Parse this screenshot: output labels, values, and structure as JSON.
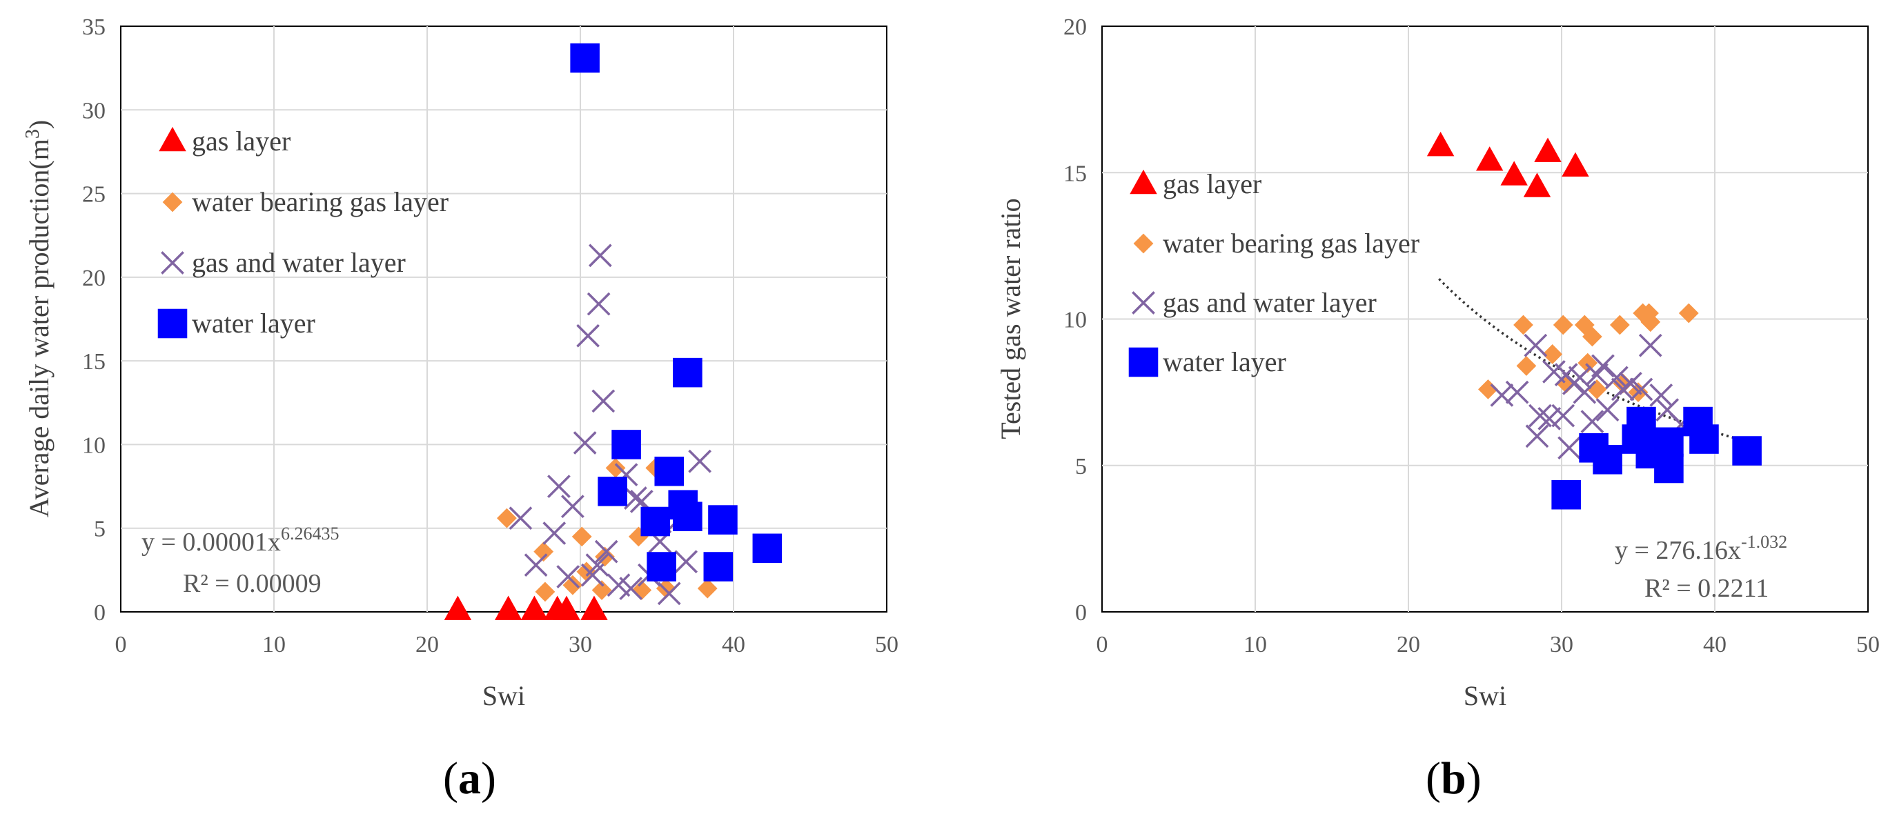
{
  "chart_data": [
    {
      "type": "scatter",
      "panel_label": "a",
      "xlabel": "Swi",
      "ylabel": "Average  daily water production(m",
      "ylabel_sup": "3",
      "ylabel_end": ")",
      "xlim": [
        0,
        50
      ],
      "ylim": [
        0,
        35
      ],
      "xticks": [
        0,
        10,
        20,
        30,
        40,
        50
      ],
      "yticks": [
        0,
        5,
        10,
        15,
        20,
        25,
        30,
        35
      ],
      "grid": true,
      "legend_position": "upper-left",
      "colors": {
        "gas_layer": "#ff0000",
        "water_bearing": "#f79646",
        "gas_water": "#8064a2",
        "water_layer": "#0000ff"
      },
      "series": [
        {
          "name": "gas layer",
          "marker": "triangle",
          "color": "#ff0000",
          "points": [
            [
              22.0,
              0.1
            ],
            [
              25.3,
              0.1
            ],
            [
              27.0,
              0.1
            ],
            [
              28.5,
              0.1
            ],
            [
              29.1,
              0.1
            ],
            [
              30.9,
              0.1
            ]
          ]
        },
        {
          "name": "water bearing gas layer",
          "marker": "diamond",
          "color": "#f79646",
          "points": [
            [
              25.2,
              5.6
            ],
            [
              27.6,
              3.6
            ],
            [
              27.7,
              1.2
            ],
            [
              29.5,
              1.6
            ],
            [
              30.1,
              4.5
            ],
            [
              30.4,
              2.4
            ],
            [
              31.4,
              1.3
            ],
            [
              31.6,
              3.3
            ],
            [
              32.3,
              8.6
            ],
            [
              33.8,
              4.5
            ],
            [
              34.0,
              1.3
            ],
            [
              34.9,
              8.6
            ],
            [
              35.6,
              1.4
            ],
            [
              38.3,
              1.4
            ]
          ]
        },
        {
          "name": "gas and water layer",
          "marker": "x",
          "color": "#8064a2",
          "points": [
            [
              26.1,
              5.6
            ],
            [
              27.1,
              2.8
            ],
            [
              28.3,
              4.7
            ],
            [
              28.6,
              7.5
            ],
            [
              29.2,
              2.1
            ],
            [
              29.5,
              6.3
            ],
            [
              30.3,
              10.1
            ],
            [
              30.5,
              16.5
            ],
            [
              30.8,
              2.2
            ],
            [
              31.1,
              2.8
            ],
            [
              31.2,
              18.4
            ],
            [
              31.3,
              21.3
            ],
            [
              31.5,
              12.6
            ],
            [
              31.7,
              3.6
            ],
            [
              32.1,
              7.2
            ],
            [
              32.5,
              1.6
            ],
            [
              33.0,
              8.2
            ],
            [
              33.3,
              1.4
            ],
            [
              33.6,
              6.8
            ],
            [
              34.0,
              6.6
            ],
            [
              34.5,
              2.2
            ],
            [
              35.2,
              4.2
            ],
            [
              35.8,
              1.1
            ],
            [
              36.5,
              5.6
            ],
            [
              36.9,
              3.0
            ],
            [
              37.8,
              9.0
            ]
          ]
        },
        {
          "name": "water layer",
          "marker": "square",
          "color": "#0000ff",
          "points": [
            [
              30.3,
              33.1
            ],
            [
              32.1,
              7.2
            ],
            [
              33.0,
              10.0
            ],
            [
              34.9,
              5.4
            ],
            [
              35.3,
              2.7
            ],
            [
              35.8,
              8.4
            ],
            [
              36.7,
              6.4
            ],
            [
              37.0,
              14.3
            ],
            [
              37.0,
              5.7
            ],
            [
              39.0,
              2.7
            ],
            [
              39.3,
              5.5
            ],
            [
              42.2,
              3.8
            ]
          ]
        }
      ],
      "trendline": {
        "type": "power",
        "a": 1e-05,
        "b": 6.26435,
        "x_start": 22.0,
        "x_end": 42.5
      },
      "equation": {
        "y_prefix": "y = 0.00001x",
        "exponent": "6.26435",
        "r2": "R² = 0.00009"
      }
    },
    {
      "type": "scatter",
      "panel_label": "b",
      "xlabel": "Swi",
      "ylabel": "Tested  gas water ratio",
      "xlim": [
        0,
        50
      ],
      "ylim": [
        0,
        20
      ],
      "xticks": [
        0,
        10,
        20,
        30,
        40,
        50
      ],
      "yticks": [
        0,
        5,
        10,
        15,
        20
      ],
      "grid": true,
      "legend_position": "upper-left",
      "series": [
        {
          "name": "gas layer",
          "marker": "triangle",
          "color": "#ff0000",
          "points": [
            [
              22.1,
              15.9
            ],
            [
              25.3,
              15.4
            ],
            [
              26.9,
              14.9
            ],
            [
              28.4,
              14.5
            ],
            [
              29.1,
              15.7
            ],
            [
              30.9,
              15.2
            ]
          ]
        },
        {
          "name": "water bearing gas layer",
          "marker": "diamond",
          "color": "#f79646",
          "points": [
            [
              25.2,
              7.6
            ],
            [
              27.5,
              9.8
            ],
            [
              27.7,
              8.4
            ],
            [
              29.4,
              8.8
            ],
            [
              30.1,
              9.8
            ],
            [
              30.3,
              7.8
            ],
            [
              31.5,
              9.8
            ],
            [
              31.7,
              8.5
            ],
            [
              32.0,
              9.4
            ],
            [
              32.3,
              7.6
            ],
            [
              33.8,
              9.8
            ],
            [
              34.0,
              7.8
            ],
            [
              35.0,
              7.5
            ],
            [
              35.3,
              10.2
            ],
            [
              35.7,
              10.2
            ],
            [
              35.8,
              9.9
            ],
            [
              38.3,
              10.2
            ]
          ]
        },
        {
          "name": "gas and water layer",
          "marker": "x",
          "color": "#8064a2",
          "points": [
            [
              26.1,
              7.4
            ],
            [
              27.1,
              7.5
            ],
            [
              28.3,
              9.1
            ],
            [
              28.4,
              6.0
            ],
            [
              28.6,
              6.7
            ],
            [
              29.2,
              6.6
            ],
            [
              29.5,
              8.2
            ],
            [
              30.1,
              6.7
            ],
            [
              30.3,
              8.1
            ],
            [
              30.5,
              5.6
            ],
            [
              30.8,
              7.8
            ],
            [
              31.2,
              8.0
            ],
            [
              31.5,
              7.5
            ],
            [
              32.0,
              6.5
            ],
            [
              32.3,
              8.1
            ],
            [
              32.7,
              8.4
            ],
            [
              33.0,
              6.9
            ],
            [
              33.6,
              8.0
            ],
            [
              34.0,
              7.6
            ],
            [
              34.5,
              7.8
            ],
            [
              35.2,
              7.6
            ],
            [
              35.8,
              9.1
            ],
            [
              36.5,
              7.4
            ],
            [
              36.9,
              6.9
            ],
            [
              37.8,
              6.4
            ]
          ]
        },
        {
          "name": "water layer",
          "marker": "square",
          "color": "#0000ff",
          "points": [
            [
              30.3,
              4.0
            ],
            [
              32.1,
              5.6
            ],
            [
              33.0,
              5.2
            ],
            [
              34.9,
              5.9
            ],
            [
              35.2,
              6.5
            ],
            [
              35.8,
              5.4
            ],
            [
              36.7,
              5.6
            ],
            [
              37.0,
              5.8
            ],
            [
              37.0,
              4.9
            ],
            [
              38.9,
              6.5
            ],
            [
              39.3,
              5.9
            ],
            [
              42.1,
              5.5
            ]
          ]
        }
      ],
      "trendline": {
        "type": "power",
        "a": 276.16,
        "b": -1.032,
        "x_start": 22.0,
        "x_end": 42.0
      },
      "equation": {
        "y_prefix": "y = 276.16x",
        "exponent": "-1.032",
        "r2": "R² = 0.2211"
      }
    }
  ]
}
